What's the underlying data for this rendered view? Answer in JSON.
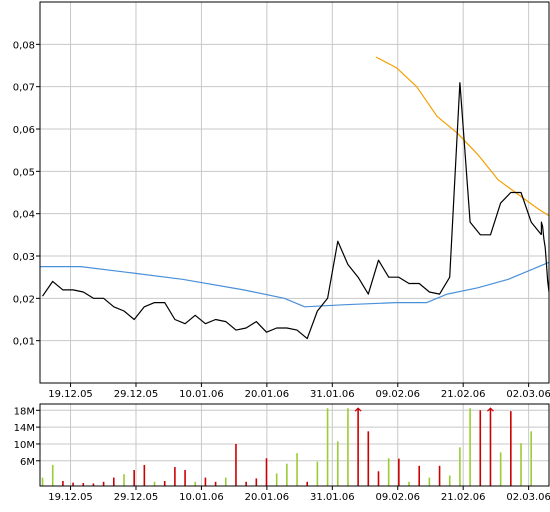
{
  "chart_data": [
    {
      "type": "line",
      "title": "",
      "xlabel": "",
      "ylabel": "",
      "x_tick_labels": [
        "19.12.05",
        "29.12.05",
        "10.01.06",
        "20.01.06",
        "31.01.06",
        "09.02.06",
        "21.02.06",
        "02.03.06"
      ],
      "y_tick_labels": [
        "0,01",
        "0,02",
        "0,03",
        "0,04",
        "0,05",
        "0,06",
        "0,07",
        "0,08"
      ],
      "ylim": [
        0,
        0.09
      ],
      "xlim": [
        0,
        100
      ],
      "grid": true,
      "series": [
        {
          "color": "#000000",
          "x": [
            0.5,
            2.5,
            4.5,
            6.5,
            8.5,
            10.5,
            12.5,
            14.5,
            16.5,
            18.5,
            20.5,
            22.5,
            24.5,
            26.5,
            28.5,
            30.5,
            32.5,
            34.5,
            36.5,
            38.5,
            40.5,
            42.5,
            44.5,
            46.5,
            48.5,
            50.5,
            52.5,
            54.5,
            56.5,
            58.5,
            60.5,
            62.5,
            64.5,
            66.5,
            68.5,
            70.5,
            72.5,
            74.5,
            76.5,
            78.5,
            80.5,
            82.5,
            84.5,
            86.5,
            88.5,
            90.5,
            92.5,
            94.5,
            96.5,
            98.5
          ],
          "values": [
            0.0205,
            0.024,
            0.022,
            0.022,
            0.0215,
            0.02,
            0.02,
            0.018,
            0.017,
            0.015,
            0.018,
            0.019,
            0.019,
            0.015,
            0.014,
            0.016,
            0.014,
            0.015,
            0.0145,
            0.0125,
            0.013,
            0.0145,
            0.012,
            0.013,
            0.013,
            0.0125,
            0.0105,
            0.017,
            0.02,
            0.0335,
            0.028,
            0.025,
            0.021,
            0.029,
            0.025,
            0.025,
            0.0235,
            0.0235,
            0.0215,
            0.021,
            0.025,
            0.071,
            0.038,
            0.035,
            0.035,
            0.0425,
            0.045,
            0.045,
            0.038,
            0.035
          ]
        },
        {
          "color": "#4a90d9",
          "x": [
            0,
            8,
            18,
            28,
            40,
            48,
            52,
            60,
            70,
            76,
            80,
            86,
            92,
            100
          ],
          "values": [
            0.0275,
            0.0275,
            0.026,
            0.0245,
            0.022,
            0.02,
            0.018,
            0.0185,
            0.019,
            0.019,
            0.021,
            0.0225,
            0.0245,
            0.0285
          ]
        },
        {
          "color": "#f5a000",
          "x": [
            66,
            70,
            74,
            78,
            82,
            86,
            90,
            94,
            98,
            100
          ],
          "values": [
            0.077,
            0.0745,
            0.07,
            0.063,
            0.059,
            0.054,
            0.048,
            0.0445,
            0.041,
            0.0395
          ]
        }
      ],
      "tail": {
        "x": [
          82,
          85,
          88,
          91,
          94,
          97,
          100
        ],
        "values": [
          0.038,
          0.037,
          0.034,
          0.032,
          0.028,
          0.024,
          0.0215
        ]
      }
    },
    {
      "type": "bar",
      "title": "",
      "y_tick_labels": [
        "6M",
        "10M",
        "14M",
        "18M"
      ],
      "x_tick_labels": [
        "19.12.05",
        "29.12.05",
        "10.01.06",
        "20.01.06",
        "31.01.06",
        "09.02.06",
        "21.02.06",
        "02.03.06"
      ],
      "ylim": [
        0,
        19.5
      ],
      "unit": "M",
      "up_color": "#9acd32",
      "down_color": "#cc0000",
      "bars": [
        {
          "x": 0.5,
          "v": 2.0,
          "c": "up"
        },
        {
          "x": 2.5,
          "v": 5.0,
          "c": "up"
        },
        {
          "x": 4.5,
          "v": 1.2,
          "c": "down"
        },
        {
          "x": 6.5,
          "v": 0.8,
          "c": "down"
        },
        {
          "x": 8.5,
          "v": 0.7,
          "c": "down"
        },
        {
          "x": 10.5,
          "v": 0.6,
          "c": "down"
        },
        {
          "x": 12.5,
          "v": 1.0,
          "c": "down"
        },
        {
          "x": 14.5,
          "v": 2.0,
          "c": "down"
        },
        {
          "x": 16.5,
          "v": 2.8,
          "c": "up"
        },
        {
          "x": 18.5,
          "v": 3.8,
          "c": "down"
        },
        {
          "x": 20.5,
          "v": 5.0,
          "c": "down"
        },
        {
          "x": 22.5,
          "v": 1.0,
          "c": "up"
        },
        {
          "x": 24.5,
          "v": 1.2,
          "c": "down"
        },
        {
          "x": 26.5,
          "v": 4.5,
          "c": "down"
        },
        {
          "x": 28.5,
          "v": 3.8,
          "c": "down"
        },
        {
          "x": 30.5,
          "v": 1.0,
          "c": "up"
        },
        {
          "x": 32.5,
          "v": 2.0,
          "c": "down"
        },
        {
          "x": 34.5,
          "v": 1.0,
          "c": "down"
        },
        {
          "x": 36.5,
          "v": 2.0,
          "c": "up"
        },
        {
          "x": 38.5,
          "v": 10.0,
          "c": "down"
        },
        {
          "x": 40.5,
          "v": 1.0,
          "c": "down"
        },
        {
          "x": 42.5,
          "v": 1.8,
          "c": "down"
        },
        {
          "x": 44.5,
          "v": 6.6,
          "c": "down"
        },
        {
          "x": 46.5,
          "v": 3.0,
          "c": "up"
        },
        {
          "x": 48.5,
          "v": 5.3,
          "c": "up"
        },
        {
          "x": 50.5,
          "v": 7.8,
          "c": "up"
        },
        {
          "x": 52.5,
          "v": 1.0,
          "c": "down"
        },
        {
          "x": 54.5,
          "v": 5.8,
          "c": "up"
        },
        {
          "x": 56.5,
          "v": 18.5,
          "c": "up"
        },
        {
          "x": 58.5,
          "v": 10.6,
          "c": "up"
        },
        {
          "x": 60.5,
          "v": 18.5,
          "c": "up"
        },
        {
          "x": 62.5,
          "v": 18.5,
          "c": "down",
          "arrow": true
        },
        {
          "x": 64.5,
          "v": 13.0,
          "c": "down"
        },
        {
          "x": 66.5,
          "v": 3.5,
          "c": "down"
        },
        {
          "x": 68.5,
          "v": 6.6,
          "c": "up"
        },
        {
          "x": 70.5,
          "v": 6.5,
          "c": "down"
        },
        {
          "x": 72.5,
          "v": 1.0,
          "c": "up"
        },
        {
          "x": 74.5,
          "v": 4.8,
          "c": "down"
        },
        {
          "x": 76.5,
          "v": 2.0,
          "c": "up"
        },
        {
          "x": 78.5,
          "v": 4.8,
          "c": "down"
        },
        {
          "x": 80.5,
          "v": 2.5,
          "c": "up"
        },
        {
          "x": 82.5,
          "v": 9.2,
          "c": "up"
        },
        {
          "x": 84.5,
          "v": 18.5,
          "c": "up"
        },
        {
          "x": 86.5,
          "v": 18.0,
          "c": "down"
        },
        {
          "x": 88.5,
          "v": 18.5,
          "c": "down",
          "arrow": true
        },
        {
          "x": 90.5,
          "v": 8.0,
          "c": "up"
        },
        {
          "x": 92.5,
          "v": 17.8,
          "c": "down"
        },
        {
          "x": 94.5,
          "v": 10.2,
          "c": "up"
        },
        {
          "x": 96.5,
          "v": 13.0,
          "c": "up"
        }
      ]
    }
  ]
}
